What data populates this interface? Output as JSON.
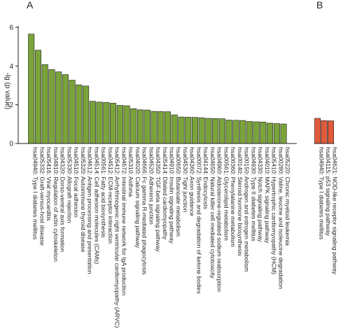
{
  "chart_data": {
    "type": "bar",
    "ylabel": "-lg (p value)",
    "ylim": [
      0,
      6
    ],
    "yticks": [
      0,
      2,
      4,
      6
    ],
    "grid": false,
    "panels": [
      {
        "letter": "A",
        "color": "#7aa33b",
        "categories": [
          "hsa04940: Type I diabetes mellitus",
          "hsa05332: Graft-versus-host disease",
          "hsa05416: Viral myocarditis",
          "hsa04810: Regulation of actin cytoskeleton",
          "hsa04320: Dorso-ventral axis formation",
          "hsa05330: Allograft rejection",
          "hsa04510: Focal adhesion",
          "hsa05320: Autoimmune thyroid disease",
          "hsa04612: Antigen processing and presentation",
          "hsa04514: Cell adhesion molecules (CAMs)",
          "hsa00561: Fatty acid biosynthesis",
          "hsa04512: ECM-receptor interaction",
          "hsa05412: Arrhythmogenic right ventricular cardiomyopathy (ARVC)",
          "hsa04672: Intestinal immune network for IgA production",
          "hsa05310: Asthma",
          "hsa04020: Calcium signaling pathway",
          "hsa04666: Fc gamma R-mediated phagocytosis",
          "hsa04520: Adherens junction",
          "hsa04350: TGF-beta signaling pathway",
          "hsa05414: Dilated cardiomyopathy",
          "hsa04910: Insulin signaling pathway",
          "hsa00650: Butanoate metabolism",
          "hsa04530: Tight junction",
          "hsa04360: Axon guidance",
          "hsa00072: Synthesis and degradation of ketone bodies",
          "hsa04144: Endocytosis",
          "hsa04650: Natural killer cell mediated cytotoxicity",
          "hsa04960: Aldosterone-regulated sodium reabsorption",
          "hsa00561: Glycerolipid metabolism",
          "hsa00360: Phenylalanine metabolism",
          "hsa00140: Steroid hormone biosynthesis",
          "hsa00150: Androgen and estrogen metabolism",
          "hsa04930: Type II diabetes mellitus",
          "hsa04330: Notch signaling pathway",
          "hsa04010: MAPK signaling pathway",
          "hsa05410: Hypertrophic cardiomyopathy (HCM)",
          "hsa00280: Valine, leucine and isoleucine degradation",
          "hsa05220: Chronic myeloid leukemia"
        ],
        "values": [
          5.65,
          4.82,
          4.08,
          3.82,
          3.7,
          3.56,
          3.27,
          3.03,
          2.97,
          2.18,
          2.14,
          2.12,
          2.08,
          1.97,
          1.95,
          1.8,
          1.74,
          1.73,
          1.66,
          1.65,
          1.64,
          1.48,
          1.37,
          1.36,
          1.35,
          1.33,
          1.3,
          1.29,
          1.28,
          1.21,
          1.2,
          1.19,
          1.14,
          1.12,
          1.11,
          1.05,
          1.03,
          1.01
        ]
      },
      {
        "letter": "B",
        "color": "#e25a3b",
        "categories": [
          "hsa04940: Type I diabetes mellitus",
          "hsa04115: p53 signaling pathway",
          "hsa04621: NOD-like receptor signaling pathway"
        ],
        "values": [
          1.3,
          1.18,
          1.17
        ]
      }
    ]
  }
}
